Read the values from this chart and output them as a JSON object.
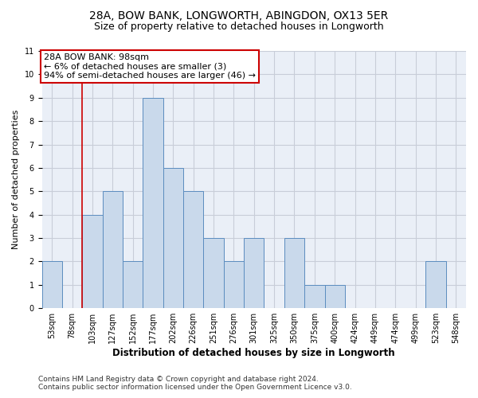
{
  "title_line1": "28A, BOW BANK, LONGWORTH, ABINGDON, OX13 5ER",
  "title_line2": "Size of property relative to detached houses in Longworth",
  "xlabel": "Distribution of detached houses by size in Longworth",
  "ylabel": "Number of detached properties",
  "categories": [
    "53sqm",
    "78sqm",
    "103sqm",
    "127sqm",
    "152sqm",
    "177sqm",
    "202sqm",
    "226sqm",
    "251sqm",
    "276sqm",
    "301sqm",
    "325sqm",
    "350sqm",
    "375sqm",
    "400sqm",
    "424sqm",
    "449sqm",
    "474sqm",
    "499sqm",
    "523sqm",
    "548sqm"
  ],
  "values": [
    2,
    0,
    4,
    5,
    2,
    9,
    6,
    5,
    3,
    2,
    3,
    0,
    3,
    1,
    1,
    0,
    0,
    0,
    0,
    2,
    0
  ],
  "bar_color": "#c9d9eb",
  "bar_edge_color": "#5b8cbf",
  "vline_x_index": 1.5,
  "annotation_line1": "28A BOW BANK: 98sqm",
  "annotation_line2": "← 6% of detached houses are smaller (3)",
  "annotation_line3": "94% of semi-detached houses are larger (46) →",
  "vline_color": "#cc0000",
  "annotation_box_color": "#ffffff",
  "annotation_box_edge": "#cc0000",
  "ylim": [
    0,
    11
  ],
  "yticks": [
    0,
    1,
    2,
    3,
    4,
    5,
    6,
    7,
    8,
    9,
    10,
    11
  ],
  "grid_color": "#c8cdd8",
  "bg_color": "#eaeff7",
  "footer_line1": "Contains HM Land Registry data © Crown copyright and database right 2024.",
  "footer_line2": "Contains public sector information licensed under the Open Government Licence v3.0.",
  "title_fontsize": 10,
  "subtitle_fontsize": 9,
  "xlabel_fontsize": 8.5,
  "ylabel_fontsize": 8,
  "tick_fontsize": 7,
  "annotation_fontsize": 8,
  "footer_fontsize": 6.5
}
